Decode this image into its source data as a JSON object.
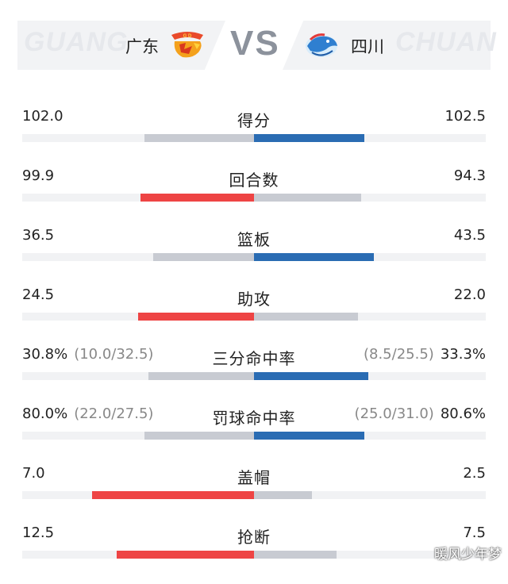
{
  "header": {
    "home": {
      "watermark": "GUANG",
      "name": "广东",
      "logo_icon": "guangdong-tigers-logo-icon"
    },
    "away": {
      "watermark": "CHUAN",
      "name": "四川",
      "logo_icon": "sichuan-bluewhales-logo-icon"
    },
    "vs": "VS"
  },
  "colors": {
    "home": "#ee4444",
    "away": "#2a6cb3",
    "neutral": "#c8cbd2",
    "track": "#f1f2f4"
  },
  "stats": [
    {
      "label": "得分",
      "home": "102.0",
      "away": "102.5",
      "home_value": 102.0,
      "away_value": 102.5,
      "leader": "away"
    },
    {
      "label": "回合数",
      "home": "99.9",
      "away": "94.3",
      "home_value": 99.9,
      "away_value": 94.3,
      "leader": "home"
    },
    {
      "label": "篮板",
      "home": "36.5",
      "away": "43.5",
      "home_value": 36.5,
      "away_value": 43.5,
      "leader": "away"
    },
    {
      "label": "助攻",
      "home": "24.5",
      "away": "22.0",
      "home_value": 24.5,
      "away_value": 22.0,
      "leader": "home"
    },
    {
      "label": "三分命中率",
      "home": "30.8%",
      "home_detail": "(10.0/32.5)",
      "away": "33.3%",
      "away_detail": "(8.5/25.5)",
      "home_value": 30.8,
      "away_value": 33.3,
      "leader": "away"
    },
    {
      "label": "罚球命中率",
      "home": "80.0%",
      "home_detail": "(22.0/27.5)",
      "away": "80.6%",
      "away_detail": "(25.0/31.0)",
      "home_value": 80.0,
      "away_value": 80.6,
      "leader": "away"
    },
    {
      "label": "盖帽",
      "home": "7.0",
      "away": "2.5",
      "home_value": 7.0,
      "away_value": 2.5,
      "leader": "home"
    },
    {
      "label": "抢断",
      "home": "12.5",
      "away": "7.5",
      "home_value": 12.5,
      "away_value": 7.5,
      "leader": "home"
    }
  ],
  "footer": {
    "watermark": "暖风少年梦"
  }
}
